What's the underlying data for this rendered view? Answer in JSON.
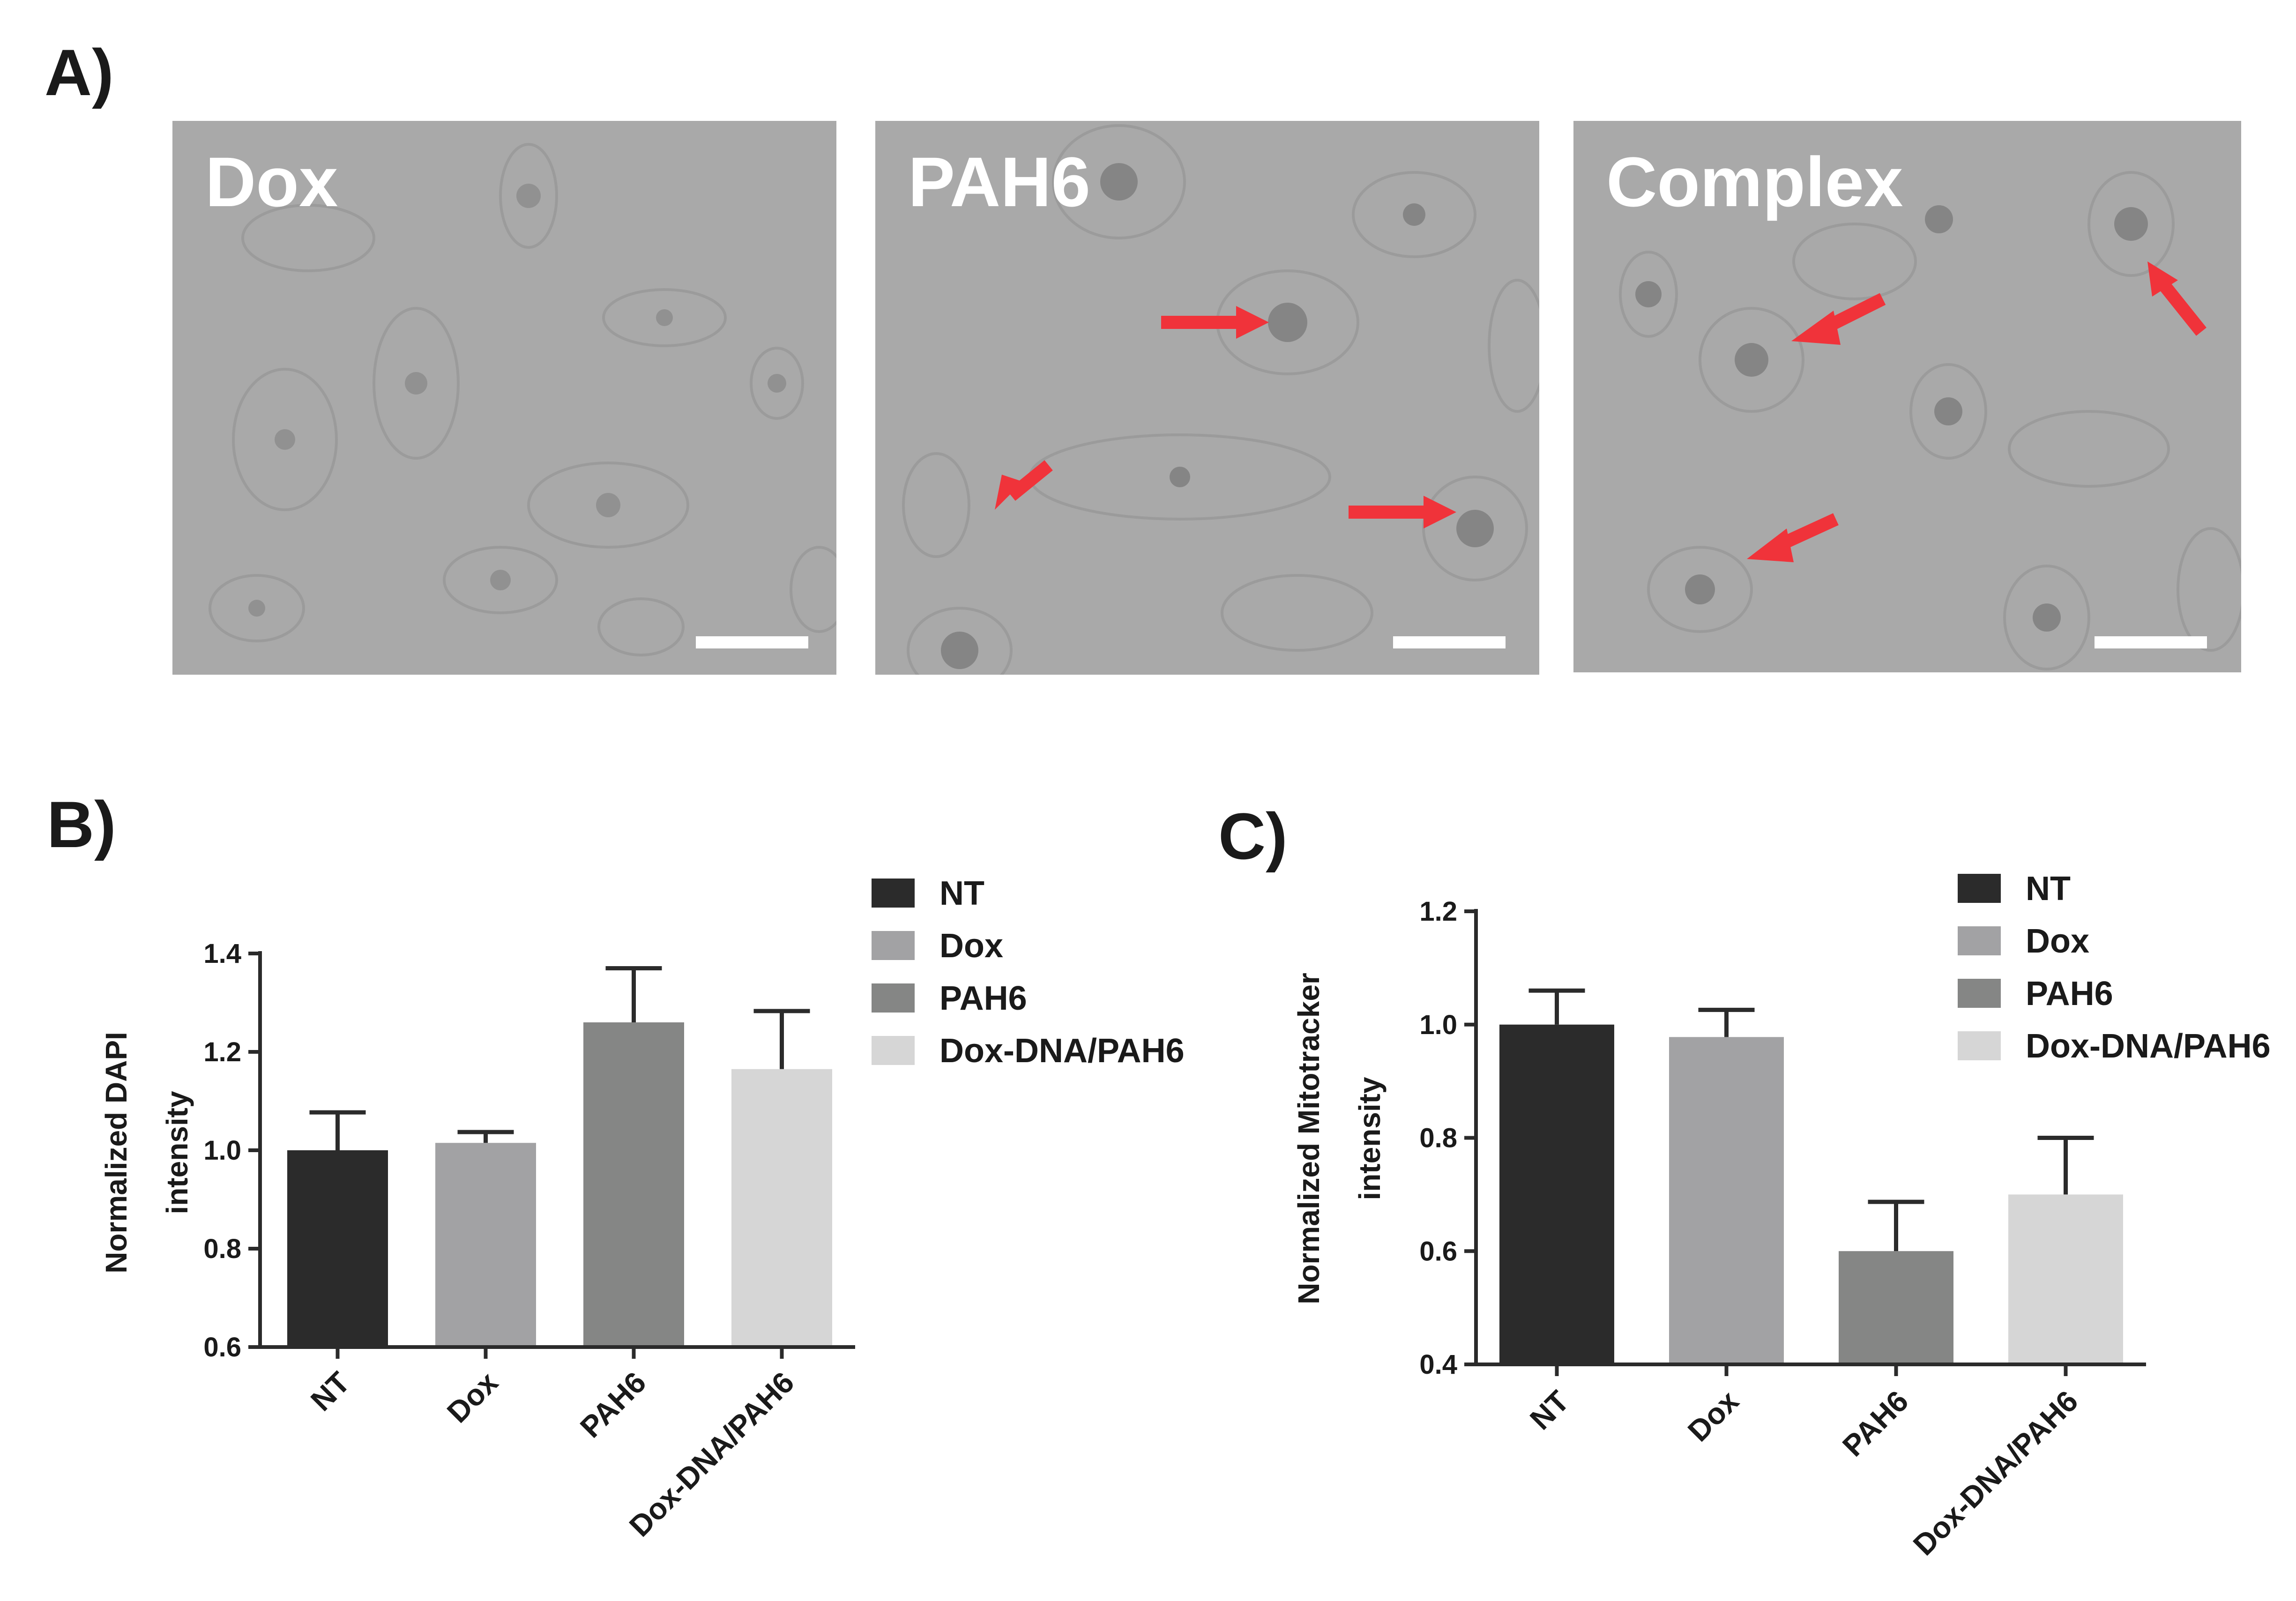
{
  "panels": {
    "a": {
      "label": "A)"
    },
    "b": {
      "label": "B)"
    },
    "c": {
      "label": "C)"
    }
  },
  "micrographs": [
    {
      "title": "Dox",
      "arrows": 0
    },
    {
      "title": "PAH6",
      "arrows": 3
    },
    {
      "title": "Complex",
      "arrows": 3
    }
  ],
  "colors": {
    "NT": "#2b2b2b",
    "Dox": "#a2a2a4",
    "PAH6": "#858685",
    "Dox-DNA/PAH6": "#d6d6d6",
    "arrow": "#f0333a",
    "micrograph_bg": "#a9a9a9"
  },
  "chart_data": [
    {
      "type": "bar",
      "categories": [
        "NT",
        "Dox",
        "PAH6",
        "Dox-DNA/PAH6"
      ],
      "series": [
        {
          "values": [
            1.0,
            1.015,
            1.26,
            1.165
          ],
          "errors": [
            0.077,
            0.022,
            0.11,
            0.118
          ]
        }
      ],
      "xlabel": "",
      "ylabel_lines": [
        "Normalized  DAPI",
        "intensity"
      ],
      "ylim": [
        0.6,
        1.4
      ],
      "yticks": [
        0.6,
        0.8,
        1.0,
        1.2,
        1.4
      ],
      "ytick_labels": [
        "0.6",
        "0.8",
        "1.0",
        "1.2",
        "1.4"
      ],
      "legend": [
        "NT",
        "Dox",
        "PAH6",
        "Dox-DNA/PAH6"
      ],
      "legend_position": "top-right",
      "grid": false
    },
    {
      "type": "bar",
      "categories": [
        "NT",
        "Dox",
        "PAH6",
        "Dox-DNA/PAH6"
      ],
      "series": [
        {
          "values": [
            1.0,
            0.978,
            0.6,
            0.7
          ],
          "errors": [
            0.06,
            0.048,
            0.087,
            0.1
          ]
        }
      ],
      "xlabel": "",
      "ylabel_lines": [
        "Normalized Mitotracker",
        "intensity"
      ],
      "ylim": [
        0.4,
        1.2
      ],
      "yticks": [
        0.4,
        0.6,
        0.8,
        1.0,
        1.2
      ],
      "ytick_labels": [
        "0.4",
        "0.6",
        "0.8",
        "1.0",
        "1.2"
      ],
      "legend": [
        "NT",
        "Dox",
        "PAH6",
        "Dox-DNA/PAH6"
      ],
      "legend_position": "top-right",
      "grid": false
    }
  ]
}
